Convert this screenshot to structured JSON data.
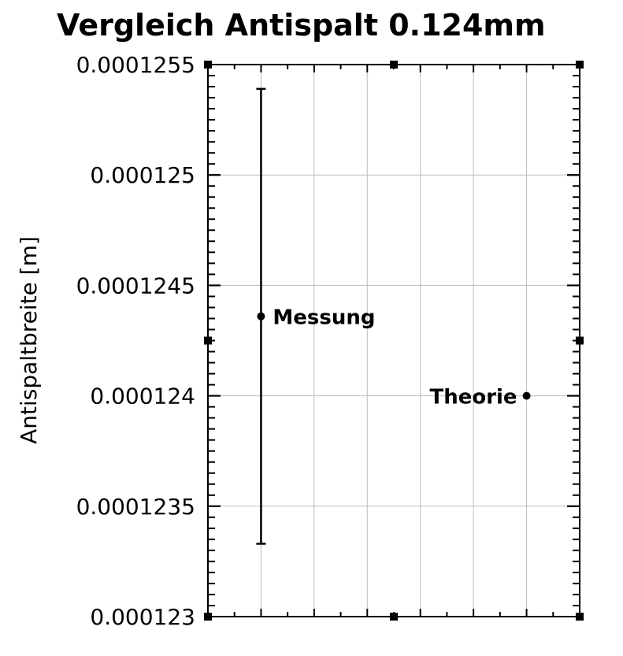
{
  "chart_data": {
    "type": "scatter",
    "title": "Vergleich Antispalt 0.124mm",
    "xlabel": "",
    "ylabel": "Antispaltbreite [m]",
    "xlim": [
      0,
      7
    ],
    "ylim": [
      0.000123,
      0.0001255
    ],
    "yticks": [
      0.000123,
      0.0001235,
      0.000124,
      0.0001245,
      0.000125,
      0.0001255
    ],
    "ytick_labels": [
      "0.000123",
      "0.0001235",
      "0.000124",
      "0.0001245",
      "0.000125",
      "0.0001255"
    ],
    "grid": true,
    "points": [
      {
        "label": "Messung",
        "x": 1,
        "y": 0.00012436,
        "yerr": 1.03e-06
      },
      {
        "label": "Theorie",
        "x": 6,
        "y": 0.000124
      }
    ]
  }
}
